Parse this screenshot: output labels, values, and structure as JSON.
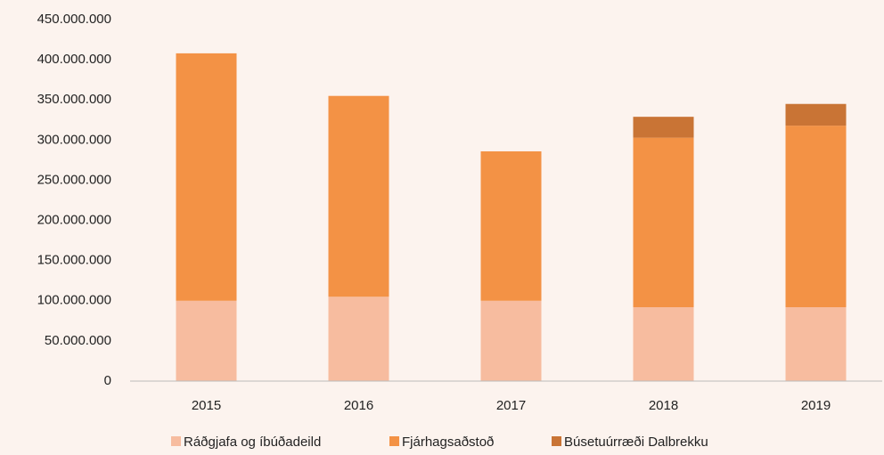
{
  "chart_data": {
    "type": "stacked-bar",
    "categories": [
      "2015",
      "2016",
      "2017",
      "2018",
      "2019"
    ],
    "series": [
      {
        "name": "Ráðgjafa og íbúðadeild",
        "color": "#f7bc9f",
        "values": [
          100000000,
          105000000,
          100000000,
          92000000,
          92000000
        ]
      },
      {
        "name": "Fjárhagsaðstoð",
        "color": "#f39245",
        "values": [
          308000000,
          250000000,
          186000000,
          211000000,
          226000000
        ]
      },
      {
        "name": "Búsetuúrræði Dalbrekku",
        "color": "#c97435",
        "values": [
          0,
          0,
          0,
          26000000,
          27000000
        ]
      }
    ],
    "ylim": [
      0,
      450000000
    ],
    "yticks": [
      0,
      {
        "value": 50000000,
        "label": "50.000.000"
      },
      {
        "value": 100000000,
        "label": "100.000.000"
      },
      {
        "value": 150000000,
        "label": "150.000.000"
      },
      {
        "value": 200000000,
        "label": "200.000.000"
      },
      {
        "value": 250000000,
        "label": "250.000.000"
      },
      {
        "value": 300000000,
        "label": "300.000.000"
      },
      {
        "value": 350000000,
        "label": "350.000.000"
      },
      {
        "value": 400000000,
        "label": "400.000.000"
      },
      {
        "value": 450000000,
        "label": "450.000.000"
      }
    ],
    "legend": "bottom"
  }
}
